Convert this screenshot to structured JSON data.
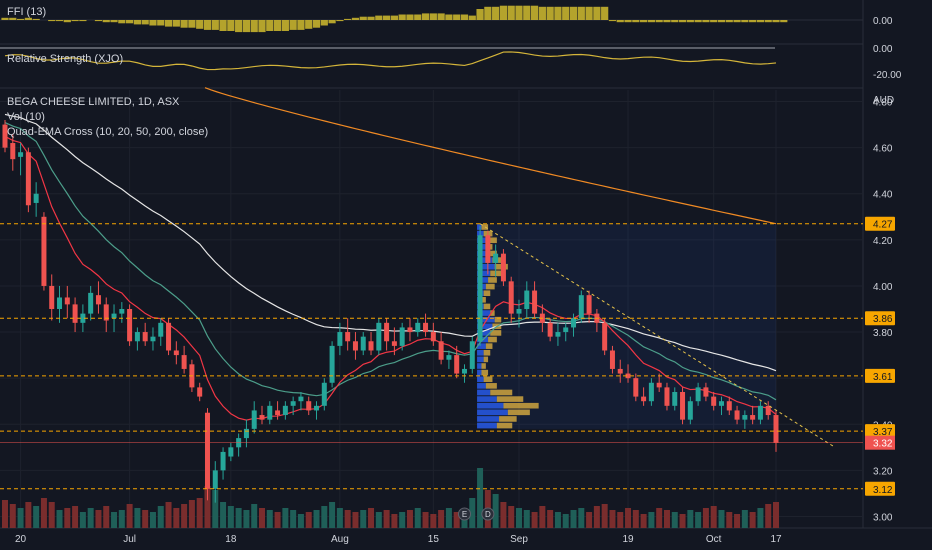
{
  "panes": {
    "ffi": {
      "label": "FFI (13)",
      "ticks": [
        "0.00"
      ]
    },
    "rs": {
      "label": "Relative Strength (XJO)",
      "ticks": [
        "0.00",
        "-20.00"
      ]
    },
    "main": {
      "title": "BEGA CHEESE LIMITED, 1D, ASX",
      "vol_label": "Vol (10)",
      "ema_label": "Quad-EMA Cross (10, 20, 50, 200, close)",
      "currency": "AUD"
    }
  },
  "colors": {
    "background": "#131722",
    "up": "#26a69a",
    "down": "#ef5350",
    "orange": "#f7a600",
    "ema10": "#f23645",
    "ema20": "#4c9e8a",
    "ema50": "#e6e6e6",
    "ema200": "#f08a24",
    "ffi": "#c7b22e",
    "rs": "#d4b53a"
  },
  "chart_data": {
    "type": "candlestick",
    "title": "BEGA CHEESE LIMITED, 1D, ASX",
    "y_axis": {
      "unit": "AUD",
      "ylim": [
        2.95,
        4.85
      ],
      "ticks": [
        "4.80",
        "4.60",
        "4.40",
        "4.20",
        "4.00",
        "3.80",
        "3.60",
        "3.40",
        "3.20",
        "3.00"
      ]
    },
    "x_axis": {
      "ticks": [
        "20",
        "Jul",
        "18",
        "Aug",
        "15",
        "Sep",
        "19",
        "Oct",
        "17"
      ]
    },
    "last_price": 3.32,
    "horizontal_levels": [
      4.27,
      3.86,
      3.61,
      3.37,
      3.12
    ],
    "ohlc": [
      [
        4.7,
        4.72,
        4.58,
        4.6
      ],
      [
        4.62,
        4.66,
        4.5,
        4.55
      ],
      [
        4.56,
        4.62,
        4.48,
        4.58
      ],
      [
        4.58,
        4.6,
        4.32,
        4.35
      ],
      [
        4.36,
        4.45,
        4.3,
        4.4
      ],
      [
        4.3,
        4.32,
        3.98,
        4.0
      ],
      [
        4.0,
        4.05,
        3.85,
        3.9
      ],
      [
        3.9,
        4.0,
        3.84,
        3.95
      ],
      [
        3.95,
        4.0,
        3.86,
        3.92
      ],
      [
        3.92,
        3.95,
        3.8,
        3.84
      ],
      [
        3.84,
        3.92,
        3.8,
        3.88
      ],
      [
        3.88,
        4.0,
        3.85,
        3.97
      ],
      [
        3.96,
        4.02,
        3.88,
        3.92
      ],
      [
        3.92,
        3.95,
        3.8,
        3.85
      ],
      [
        3.86,
        3.92,
        3.8,
        3.88
      ],
      [
        3.88,
        3.93,
        3.84,
        3.9
      ],
      [
        3.9,
        3.92,
        3.74,
        3.76
      ],
      [
        3.76,
        3.82,
        3.72,
        3.8
      ],
      [
        3.8,
        3.84,
        3.74,
        3.76
      ],
      [
        3.76,
        3.82,
        3.72,
        3.78
      ],
      [
        3.78,
        3.86,
        3.74,
        3.84
      ],
      [
        3.84,
        3.86,
        3.7,
        3.72
      ],
      [
        3.72,
        3.76,
        3.66,
        3.7
      ],
      [
        3.7,
        3.74,
        3.62,
        3.64
      ],
      [
        3.66,
        3.68,
        3.54,
        3.56
      ],
      [
        3.56,
        3.58,
        3.5,
        3.52
      ],
      [
        3.45,
        3.47,
        3.07,
        3.12
      ],
      [
        3.12,
        3.24,
        3.06,
        3.2
      ],
      [
        3.2,
        3.3,
        3.16,
        3.28
      ],
      [
        3.26,
        3.32,
        3.24,
        3.3
      ],
      [
        3.3,
        3.36,
        3.26,
        3.34
      ],
      [
        3.34,
        3.42,
        3.3,
        3.38
      ],
      [
        3.38,
        3.5,
        3.36,
        3.46
      ],
      [
        3.44,
        3.48,
        3.4,
        3.42
      ],
      [
        3.42,
        3.5,
        3.4,
        3.48
      ],
      [
        3.46,
        3.5,
        3.42,
        3.44
      ],
      [
        3.44,
        3.5,
        3.42,
        3.48
      ],
      [
        3.48,
        3.52,
        3.44,
        3.5
      ],
      [
        3.5,
        3.54,
        3.46,
        3.52
      ],
      [
        3.5,
        3.52,
        3.44,
        3.46
      ],
      [
        3.46,
        3.5,
        3.42,
        3.48
      ],
      [
        3.48,
        3.6,
        3.46,
        3.58
      ],
      [
        3.58,
        3.76,
        3.56,
        3.74
      ],
      [
        3.74,
        3.84,
        3.7,
        3.8
      ],
      [
        3.8,
        3.86,
        3.72,
        3.76
      ],
      [
        3.76,
        3.8,
        3.68,
        3.72
      ],
      [
        3.72,
        3.8,
        3.7,
        3.78
      ],
      [
        3.76,
        3.8,
        3.7,
        3.72
      ],
      [
        3.72,
        3.86,
        3.7,
        3.84
      ],
      [
        3.84,
        3.86,
        3.72,
        3.76
      ],
      [
        3.76,
        3.82,
        3.7,
        3.74
      ],
      [
        3.74,
        3.84,
        3.72,
        3.82
      ],
      [
        3.82,
        3.86,
        3.76,
        3.8
      ],
      [
        3.8,
        3.86,
        3.78,
        3.84
      ],
      [
        3.84,
        3.88,
        3.78,
        3.8
      ],
      [
        3.8,
        3.84,
        3.74,
        3.76
      ],
      [
        3.76,
        3.8,
        3.66,
        3.68
      ],
      [
        3.68,
        3.72,
        3.64,
        3.7
      ],
      [
        3.7,
        3.74,
        3.6,
        3.62
      ],
      [
        3.62,
        3.66,
        3.58,
        3.64
      ],
      [
        3.64,
        3.78,
        3.62,
        3.76
      ],
      [
        3.76,
        4.26,
        3.74,
        4.22
      ],
      [
        4.22,
        4.24,
        4.05,
        4.1
      ],
      [
        4.1,
        4.18,
        4.04,
        4.14
      ],
      [
        4.14,
        4.16,
        4.0,
        4.02
      ],
      [
        4.02,
        4.04,
        3.84,
        3.88
      ],
      [
        3.88,
        3.94,
        3.82,
        3.9
      ],
      [
        3.9,
        4.02,
        3.86,
        3.98
      ],
      [
        3.98,
        4.02,
        3.86,
        3.88
      ],
      [
        3.88,
        3.92,
        3.8,
        3.84
      ],
      [
        3.84,
        3.86,
        3.76,
        3.78
      ],
      [
        3.78,
        3.84,
        3.74,
        3.8
      ],
      [
        3.8,
        3.84,
        3.76,
        3.82
      ],
      [
        3.82,
        3.88,
        3.78,
        3.86
      ],
      [
        3.86,
        3.98,
        3.84,
        3.96
      ],
      [
        3.96,
        3.98,
        3.84,
        3.88
      ],
      [
        3.88,
        3.9,
        3.8,
        3.84
      ],
      [
        3.84,
        3.86,
        3.7,
        3.72
      ],
      [
        3.72,
        3.74,
        3.62,
        3.64
      ],
      [
        3.64,
        3.68,
        3.58,
        3.62
      ],
      [
        3.62,
        3.66,
        3.58,
        3.6
      ],
      [
        3.6,
        3.62,
        3.5,
        3.52
      ],
      [
        3.52,
        3.56,
        3.48,
        3.5
      ],
      [
        3.5,
        3.6,
        3.48,
        3.58
      ],
      [
        3.58,
        3.62,
        3.54,
        3.56
      ],
      [
        3.56,
        3.58,
        3.46,
        3.48
      ],
      [
        3.48,
        3.56,
        3.46,
        3.54
      ],
      [
        3.54,
        3.56,
        3.4,
        3.42
      ],
      [
        3.42,
        3.52,
        3.4,
        3.5
      ],
      [
        3.5,
        3.58,
        3.48,
        3.56
      ],
      [
        3.56,
        3.58,
        3.5,
        3.52
      ],
      [
        3.52,
        3.54,
        3.46,
        3.48
      ],
      [
        3.48,
        3.52,
        3.44,
        3.5
      ],
      [
        3.5,
        3.52,
        3.44,
        3.46
      ],
      [
        3.46,
        3.48,
        3.4,
        3.42
      ],
      [
        3.42,
        3.46,
        3.38,
        3.44
      ],
      [
        3.44,
        3.48,
        3.4,
        3.42
      ],
      [
        3.42,
        3.5,
        3.4,
        3.48
      ],
      [
        3.48,
        3.5,
        3.42,
        3.44
      ],
      [
        3.44,
        3.46,
        3.28,
        3.32
      ]
    ],
    "volume": [
      28,
      24,
      20,
      26,
      22,
      30,
      26,
      18,
      20,
      22,
      16,
      20,
      18,
      22,
      16,
      18,
      24,
      20,
      18,
      16,
      22,
      26,
      20,
      24,
      28,
      30,
      42,
      38,
      26,
      22,
      20,
      18,
      24,
      20,
      18,
      16,
      20,
      18,
      14,
      16,
      18,
      22,
      26,
      20,
      18,
      16,
      18,
      20,
      16,
      18,
      14,
      16,
      18,
      20,
      16,
      14,
      18,
      20,
      16,
      18,
      30,
      60,
      38,
      34,
      26,
      22,
      20,
      18,
      16,
      22,
      18,
      16,
      14,
      18,
      20,
      16,
      22,
      24,
      18,
      16,
      20,
      18,
      14,
      16,
      20,
      18,
      16,
      14,
      18,
      16,
      20,
      22,
      18,
      16,
      14,
      18,
      16,
      20,
      24,
      26
    ],
    "ema": [
      {
        "name": "EMA 10"
      },
      {
        "name": "EMA 20"
      },
      {
        "name": "EMA 50"
      },
      {
        "name": "EMA 200"
      }
    ],
    "ema200_start": 4.86,
    "ema200_end": 4.27,
    "ema50_start": 4.75,
    "volume_profile": {
      "price_top": 4.27,
      "price_bottom": 3.38,
      "rows_up": [
        2,
        3,
        4,
        5,
        6,
        7,
        8,
        6,
        5,
        4,
        3,
        2,
        3,
        6,
        8,
        7,
        6,
        5,
        4,
        3,
        3,
        2,
        2,
        3,
        4,
        6,
        9,
        12,
        14,
        10,
        9
      ],
      "rows_down": [
        3,
        4,
        5,
        2,
        3,
        5,
        6,
        5,
        4,
        4,
        3,
        2,
        3,
        2,
        3,
        4,
        5,
        4,
        3,
        3,
        2,
        2,
        3,
        4,
        5,
        10,
        12,
        16,
        10,
        8,
        7
      ]
    },
    "trend_line": {
      "from": 4.27,
      "to": 3.38
    }
  }
}
